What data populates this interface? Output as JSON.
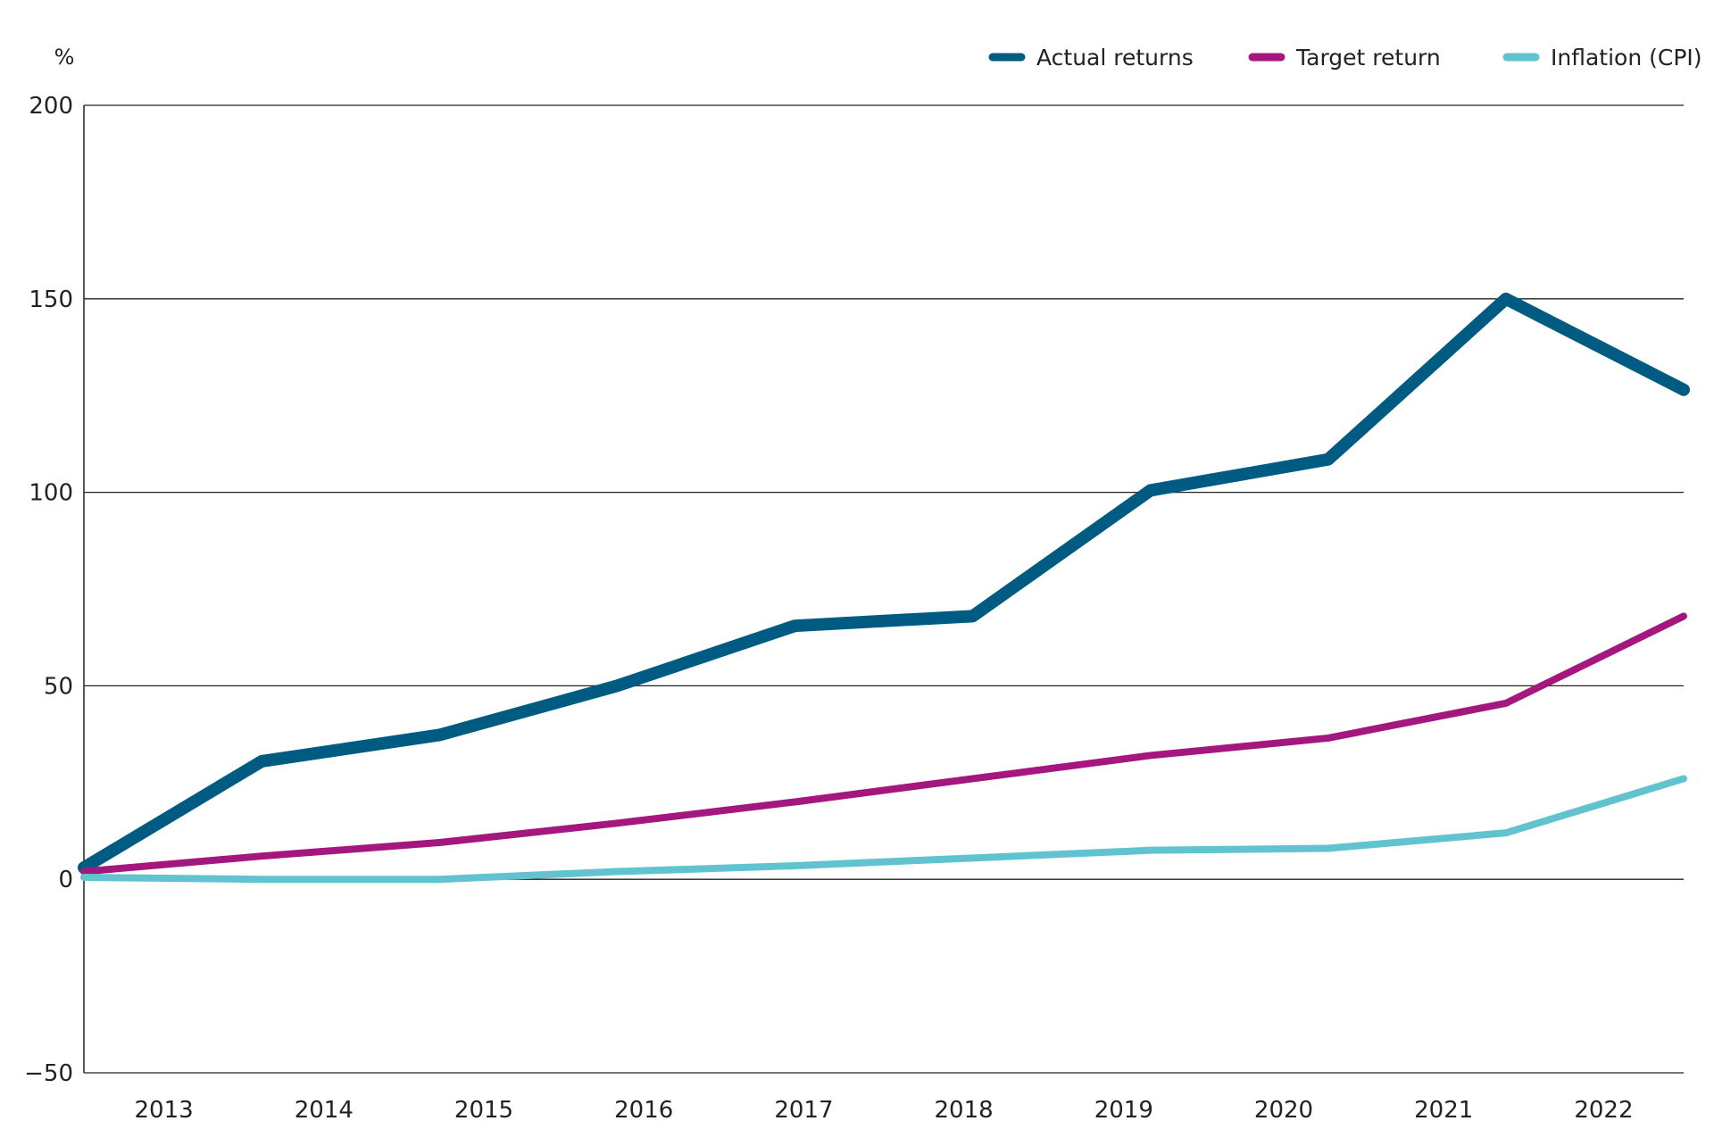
{
  "chart_data": {
    "type": "line",
    "title": "",
    "xlabel": "",
    "ylabel": "%",
    "ylim": [
      -50,
      200
    ],
    "yticks": [
      200,
      150,
      100,
      50,
      0,
      -50
    ],
    "categories": [
      "2013",
      "2014",
      "2015",
      "2016",
      "2017",
      "2018",
      "2019",
      "2020",
      "2021",
      "2022"
    ],
    "grid": true,
    "legend_position": "top-right",
    "series": [
      {
        "name": "Actual returns",
        "color": "#005b82",
        "values": [
          3,
          30.5,
          37.3,
          50,
          65.5,
          68,
          100.5,
          108.5,
          150,
          126.5
        ]
      },
      {
        "name": "Target return",
        "color": "#a3177e",
        "values": [
          2,
          6,
          9.5,
          14.5,
          20,
          26,
          32,
          36.5,
          45.5,
          68
        ]
      },
      {
        "name": "Inflation (CPI)",
        "color": "#62c3d0",
        "values": [
          0.5,
          0,
          0,
          2,
          3.5,
          5.5,
          7.5,
          8,
          12,
          26
        ]
      }
    ]
  }
}
